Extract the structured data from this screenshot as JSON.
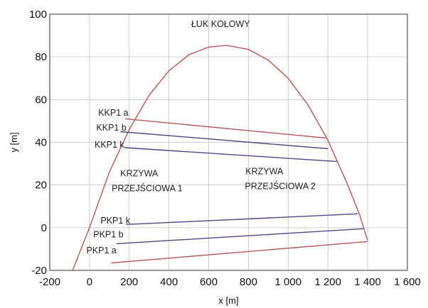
{
  "chart_data": {
    "type": "line",
    "title": "ŁUK KOŁOWY",
    "xlabel": "x [m]",
    "ylabel": "y [m]",
    "xlim": [
      -200,
      1600
    ],
    "ylim": [
      -20,
      100
    ],
    "x_ticks": [
      -200,
      0,
      200,
      400,
      600,
      800,
      1000,
      1200,
      1400,
      1600
    ],
    "x_tick_labels": [
      "-200",
      "0",
      "200",
      "400",
      "600",
      "800",
      "1 000",
      "1 200",
      "1 400",
      "1 600"
    ],
    "y_ticks": [
      -20,
      0,
      20,
      40,
      60,
      80,
      100
    ],
    "y_tick_labels": [
      "-20",
      "0",
      "20",
      "40",
      "60",
      "80",
      "100"
    ],
    "grid": true,
    "colors": {
      "arc": "#b85a5a",
      "red_line": "#b85a5a",
      "blue_line": "#4a4a8a",
      "grid": "#cfcfcf",
      "frame": "#555555"
    },
    "series": [
      {
        "color_key": "arc",
        "points": [
          [
            -85,
            -20
          ],
          [
            0,
            0
          ],
          [
            100,
            26
          ],
          [
            200,
            46
          ],
          [
            300,
            62
          ],
          [
            400,
            73.5
          ],
          [
            500,
            81
          ],
          [
            600,
            84.6
          ],
          [
            690,
            85.4
          ],
          [
            800,
            83.5
          ],
          [
            900,
            78.5
          ],
          [
            1000,
            70
          ],
          [
            1100,
            57.5
          ],
          [
            1200,
            41
          ],
          [
            1300,
            20
          ],
          [
            1360,
            6
          ],
          [
            1400,
            -6
          ]
        ]
      },
      {
        "color_key": "red_line",
        "points": [
          [
            180,
            51
          ],
          [
            1190,
            42
          ]
        ]
      },
      {
        "color_key": "blue_line",
        "points": [
          [
            155,
            45
          ],
          [
            1200,
            37
          ]
        ]
      },
      {
        "color_key": "blue_line",
        "points": [
          [
            175,
            37.5
          ],
          [
            1245,
            31
          ]
        ]
      },
      {
        "color_key": "blue_line",
        "points": [
          [
            185,
            1.5
          ],
          [
            1350,
            6.5
          ]
        ]
      },
      {
        "color_key": "blue_line",
        "points": [
          [
            135,
            -7.5
          ],
          [
            1380,
            -0.5
          ]
        ]
      },
      {
        "color_key": "red_line",
        "points": [
          [
            110,
            -16.5
          ],
          [
            1400,
            -6.5
          ]
        ]
      }
    ],
    "annotations": [
      {
        "text": "ŁUK KOŁOWY",
        "x": 660,
        "y": 94
      },
      {
        "text": "KKP1 a",
        "x": 120,
        "y": 52.5
      },
      {
        "text": "KKP1 b",
        "x": 110,
        "y": 45.5
      },
      {
        "text": "KKP1 k",
        "x": 100,
        "y": 37.5
      },
      {
        "text": "KRZYWA",
        "x": 250,
        "y": 24
      },
      {
        "text": "PRZEJŚCIOWA 1",
        "x": 290,
        "y": 17
      },
      {
        "text": "KRZYWA",
        "x": 880,
        "y": 25
      },
      {
        "text": "PRZEJŚCIOWA 2",
        "x": 960,
        "y": 18
      },
      {
        "text": "PKP1 k",
        "x": 130,
        "y": 2
      },
      {
        "text": "PKP1 b",
        "x": 95,
        "y": -4.5
      },
      {
        "text": "PKP1 a",
        "x": 60,
        "y": -12
      }
    ]
  }
}
